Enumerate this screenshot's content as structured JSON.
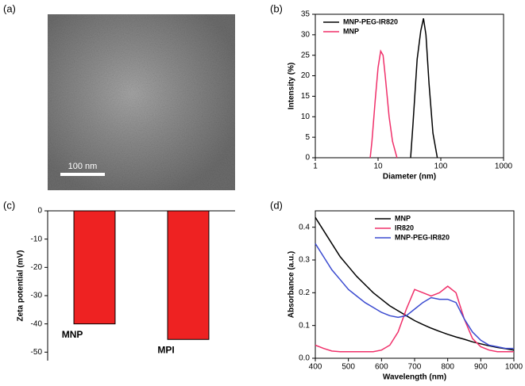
{
  "image": {
    "label": "(a)",
    "scale_bar": "100 nm"
  },
  "chart_data": [
    {
      "type": "line",
      "label": "(b)",
      "xlabel": "Diameter (nm)",
      "ylabel": "Intensity (%)",
      "xscale": "log",
      "xlim": [
        1,
        1000
      ],
      "xticks": [
        1,
        10,
        100,
        1000
      ],
      "ylim": [
        0,
        35
      ],
      "yticks": [
        0,
        5,
        10,
        15,
        20,
        25,
        30,
        35
      ],
      "legend": "upper left",
      "series": [
        {
          "name": "MNP-PEG-IR820",
          "color": "#000000",
          "x": [
            33,
            36,
            42,
            48,
            53,
            58,
            65,
            75,
            88
          ],
          "values": [
            0,
            8,
            24,
            31,
            34,
            30,
            18,
            6,
            0
          ]
        },
        {
          "name": "MNP",
          "color": "#f0306a",
          "x": [
            7.5,
            8,
            9,
            10,
            11,
            12,
            13,
            15,
            17,
            20
          ],
          "values": [
            0,
            4,
            14,
            22,
            26,
            25,
            20,
            10,
            4,
            0
          ]
        }
      ]
    },
    {
      "type": "bar",
      "label": "(c)",
      "ylabel": "Zeta potential (mV)",
      "categories": [
        "MNP",
        "MPI"
      ],
      "values": [
        -40,
        -45.5
      ],
      "color": "#ee2222",
      "ylim": [
        -53,
        0
      ],
      "yticks": [
        0,
        -10,
        -20,
        -30,
        -40,
        -50
      ]
    },
    {
      "type": "line",
      "label": "(d)",
      "xlabel": "Wavelength (nm)",
      "ylabel": "Absorbance (a.u.)",
      "xlim": [
        400,
        1000
      ],
      "xticks": [
        400,
        500,
        600,
        700,
        800,
        900,
        1000
      ],
      "ylim": [
        0,
        0.45
      ],
      "yticks": [
        {
          "value": 0,
          "label": "0.0"
        },
        0.1,
        0.2,
        0.3,
        0.4
      ],
      "legend": "upper right",
      "x": [
        400,
        425,
        450,
        475,
        500,
        525,
        550,
        575,
        600,
        625,
        650,
        675,
        700,
        725,
        750,
        775,
        800,
        825,
        850,
        875,
        900,
        925,
        950,
        975,
        1000
      ],
      "series": [
        {
          "name": "MNP",
          "color": "#000000",
          "values": [
            0.43,
            0.39,
            0.35,
            0.31,
            0.28,
            0.25,
            0.225,
            0.2,
            0.18,
            0.16,
            0.145,
            0.13,
            0.115,
            0.103,
            0.092,
            0.082,
            0.073,
            0.065,
            0.058,
            0.05,
            0.044,
            0.038,
            0.033,
            0.029,
            0.025
          ]
        },
        {
          "name": "IR820",
          "color": "#f0306a",
          "values": [
            0.04,
            0.03,
            0.022,
            0.02,
            0.02,
            0.02,
            0.02,
            0.02,
            0.025,
            0.04,
            0.08,
            0.15,
            0.21,
            0.2,
            0.19,
            0.2,
            0.22,
            0.2,
            0.12,
            0.06,
            0.035,
            0.025,
            0.02,
            0.02,
            0.02
          ]
        },
        {
          "name": "MNP-PEG-IR820",
          "color": "#3b4bd0",
          "values": [
            0.35,
            0.31,
            0.27,
            0.24,
            0.21,
            0.19,
            0.17,
            0.155,
            0.14,
            0.13,
            0.125,
            0.13,
            0.15,
            0.17,
            0.185,
            0.18,
            0.18,
            0.17,
            0.12,
            0.08,
            0.055,
            0.04,
            0.035,
            0.03,
            0.03
          ]
        }
      ]
    }
  ]
}
